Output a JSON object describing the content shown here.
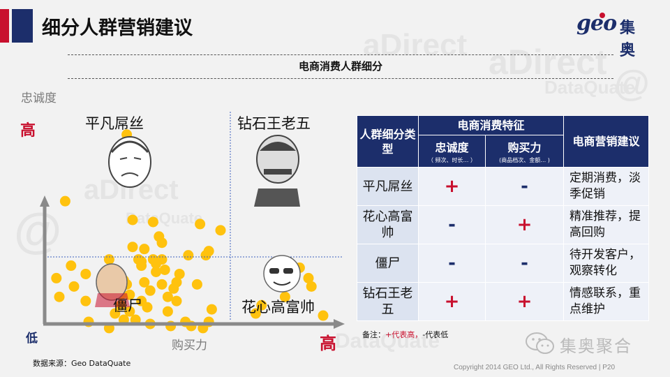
{
  "page_title": "细分人群营销建议",
  "logo": {
    "brand_latin": "geo",
    "brand_cn": "集奥"
  },
  "section_heading": "电商消费人群细分",
  "chart": {
    "y_axis_label": "忠诚度",
    "x_axis_label": "购买力",
    "y_high": "高",
    "y_low": "低",
    "x_high": "高",
    "quadrants": {
      "top_left": "平凡屌丝",
      "top_right": "钻石王老五",
      "bottom_left": "僵尸",
      "bottom_right": "花心高富帅"
    },
    "colors": {
      "dot": "#ffc20e",
      "axis": "#8a8a8a",
      "quadrant_line": "#3a5fbf",
      "high_label": "#c8102e",
      "low_label": "#1c2e6b"
    }
  },
  "chart_data": {
    "type": "scatter",
    "title": "",
    "xlabel": "购买力",
    "ylabel": "忠诚度",
    "xlim": [
      0,
      100
    ],
    "ylim": [
      0,
      100
    ],
    "quadrant_split": {
      "x": 63,
      "y": 32
    },
    "points": [
      [
        28,
        89
      ],
      [
        7,
        57
      ],
      [
        30,
        48
      ],
      [
        37,
        47
      ],
      [
        39,
        40
      ],
      [
        53,
        46
      ],
      [
        60,
        43
      ],
      [
        55,
        31
      ],
      [
        56,
        33
      ],
      [
        9,
        26
      ],
      [
        14,
        22
      ],
      [
        22,
        29
      ],
      [
        30,
        35
      ],
      [
        34,
        34
      ],
      [
        40,
        37
      ],
      [
        38,
        27
      ],
      [
        33,
        26
      ],
      [
        38,
        23
      ],
      [
        41,
        24
      ],
      [
        40,
        17
      ],
      [
        27,
        19
      ],
      [
        21,
        15
      ],
      [
        26,
        12
      ],
      [
        28,
        17
      ],
      [
        46,
        22
      ],
      [
        49,
        31
      ],
      [
        36,
        14
      ],
      [
        45,
        18
      ],
      [
        52,
        17
      ],
      [
        4,
        20
      ],
      [
        14,
        9
      ],
      [
        26,
        7
      ],
      [
        33,
        9
      ],
      [
        35,
        6
      ],
      [
        45,
        9
      ],
      [
        57,
        5
      ],
      [
        40,
        29
      ],
      [
        32,
        29
      ],
      [
        24,
        12
      ],
      [
        26,
        18
      ],
      [
        33,
        28
      ],
      [
        37,
        29
      ],
      [
        42,
        11
      ],
      [
        44,
        15
      ],
      [
        29,
        12
      ],
      [
        34,
        18
      ],
      [
        29,
        4
      ],
      [
        10,
        16
      ],
      [
        5,
        11
      ],
      [
        15,
        -1
      ],
      [
        42,
        4
      ],
      [
        48,
        -1
      ],
      [
        54,
        -4
      ],
      [
        24,
        3
      ],
      [
        22,
        -4
      ],
      [
        36,
        -2
      ],
      [
        31,
        0
      ],
      [
        43,
        -3
      ],
      [
        50,
        -3
      ],
      [
        56,
        -1
      ],
      [
        27,
        0
      ],
      [
        81,
        25
      ],
      [
        90,
        20
      ],
      [
        95,
        2
      ],
      [
        91,
        16
      ],
      [
        74,
        7
      ],
      [
        72,
        3
      ],
      [
        82,
        11
      ],
      [
        87,
        25
      ]
    ]
  },
  "table": {
    "col1_header": "人群细分类型",
    "group_header": "电商消费特征",
    "sub_headers": [
      {
        "label": "忠诚度",
        "note": "（ 频次、时长… ）"
      },
      {
        "label": "购买力",
        "note": "(商品档次、金额… )"
      }
    ],
    "col4_header": "电商营销建议",
    "rows": [
      {
        "segment": "平凡屌丝",
        "loyalty": "+",
        "purchasing": "-",
        "advice": "定期消费，淡季促销"
      },
      {
        "segment": "花心高富帅",
        "loyalty": "-",
        "purchasing": "+",
        "advice": "精准推荐，提高回购"
      },
      {
        "segment": "僵尸",
        "loyalty": "-",
        "purchasing": "-",
        "advice": "待开发客户，观察转化"
      },
      {
        "segment": "钻石王老五",
        "loyalty": "+",
        "purchasing": "+",
        "advice": "情感联系，重点维护"
      }
    ]
  },
  "note": {
    "prefix": "备注：",
    "plus": "+代表高，",
    "minus": "-代表低"
  },
  "source": "数据来源：Geo DataQuate",
  "copyright": "Copyright 2014 GEO Ltd., All Rights Reserved  |  P20",
  "wechat_watermark": "集奥聚合",
  "background_watermark": [
    "aDirect",
    "DataQuate",
    "@"
  ]
}
